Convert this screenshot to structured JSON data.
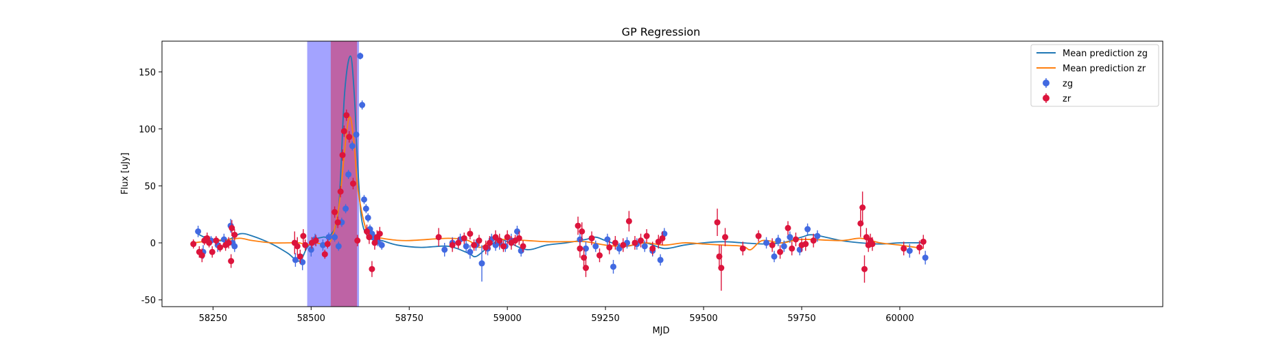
{
  "chart_data": {
    "type": "scatter",
    "title": "GP Regression",
    "xlabel": "MJD",
    "ylabel": "Flux [uJy]",
    "xlim": [
      58120,
      60670
    ],
    "ylim": [
      -56,
      177
    ],
    "xticks": [
      58250,
      58500,
      58750,
      59000,
      59250,
      59500,
      59750,
      60000
    ],
    "yticks": [
      -50,
      0,
      50,
      100,
      150
    ],
    "grid": false,
    "legend_position": "top-right",
    "colors": {
      "zg": "#4169e1",
      "zr": "#dc143c",
      "mean_zg": "#1f77b4",
      "mean_zr": "#ff7f0e",
      "band_zg": "#a3a3ff",
      "band_zr": "#c060a0"
    },
    "shaded_regions": [
      {
        "band": "zg",
        "x": [
          58490,
          58622
        ]
      },
      {
        "band": "zr",
        "x": [
          58550,
          58617
        ]
      }
    ],
    "series": [
      {
        "name": "Mean prediction zg",
        "kind": "line",
        "x": [
          58210,
          58250,
          58290,
          58320,
          58350,
          58400,
          58440,
          58470,
          58490,
          58510,
          58530,
          58550,
          58570,
          58585,
          58600,
          58610,
          58620,
          58630,
          58650,
          58680,
          58720,
          58780,
          58850,
          58900,
          58920,
          58950,
          58980,
          59000,
          59050,
          59100,
          59150,
          59200,
          59225,
          59250,
          59300,
          59350,
          59400,
          59450,
          59500,
          59550,
          59600,
          59650,
          59700,
          59750,
          59780,
          59850,
          59900,
          59950,
          60000,
          60060
        ],
        "y": [
          8,
          2,
          3,
          8,
          6,
          -1,
          -9,
          -16,
          -4,
          3,
          5,
          7,
          30,
          130,
          164,
          130,
          60,
          18,
          4,
          2,
          -2,
          -4,
          -3,
          -9,
          -12,
          -4,
          3,
          1,
          -6,
          -2,
          0,
          3,
          5,
          2,
          -3,
          0,
          -5,
          -2,
          0,
          1,
          0,
          -1,
          0,
          5,
          7,
          2,
          0,
          -1,
          0,
          0
        ]
      },
      {
        "name": "Mean prediction zr",
        "kind": "line",
        "x": [
          58200,
          58250,
          58290,
          58320,
          58350,
          58400,
          58440,
          58470,
          58490,
          58510,
          58530,
          58550,
          58570,
          58590,
          58600,
          58610,
          58620,
          58640,
          58660,
          58700,
          58750,
          58850,
          58900,
          58930,
          58960,
          59000,
          59050,
          59100,
          59150,
          59200,
          59250,
          59300,
          59350,
          59400,
          59450,
          59500,
          59550,
          59600,
          59620,
          59650,
          59700,
          59750,
          59850,
          59900,
          59950,
          60000,
          60060
        ],
        "y": [
          0,
          2,
          3,
          4,
          2,
          0,
          0,
          0,
          -2,
          0,
          -1,
          2,
          30,
          96,
          110,
          85,
          45,
          12,
          6,
          3,
          2,
          4,
          2,
          -4,
          2,
          3,
          2,
          1,
          1,
          1,
          -2,
          -3,
          0,
          -2,
          0,
          -1,
          -2,
          -3,
          -6,
          2,
          0,
          3,
          2,
          4,
          0,
          -2,
          -5
        ]
      },
      {
        "name": "zg",
        "kind": "errorbar",
        "x": [
          58212,
          58225,
          58245,
          58262,
          58278,
          58295,
          58300,
          58305,
          58460,
          58478,
          58500,
          58510,
          58530,
          58545,
          58560,
          58570,
          58578,
          58588,
          58595,
          58605,
          58615,
          58625,
          58630,
          58635,
          58640,
          58645,
          58650,
          58655,
          58660,
          58665,
          58670,
          58680,
          58840,
          58860,
          58880,
          58895,
          58905,
          58920,
          58935,
          58950,
          58960,
          58970,
          58980,
          58995,
          59010,
          59025,
          59035,
          59185,
          59200,
          59225,
          59255,
          59270,
          59285,
          59305,
          59330,
          59350,
          59370,
          59390,
          59400,
          59660,
          59680,
          59690,
          59705,
          59720,
          59745,
          59765,
          59790,
          60025,
          60065
        ],
        "y": [
          10,
          -8,
          2,
          -2,
          3,
          15,
          0,
          -3,
          -15,
          -17,
          -6,
          3,
          -2,
          5,
          5,
          -3,
          18,
          30,
          60,
          85,
          95,
          164,
          121,
          38,
          30,
          22,
          12,
          8,
          5,
          3,
          1,
          -2,
          -6,
          0,
          3,
          -3,
          -8,
          -2,
          -18,
          -5,
          3,
          -2,
          0,
          -3,
          2,
          10,
          -7,
          3,
          -5,
          -3,
          3,
          -21,
          -5,
          0,
          -1,
          -3,
          -7,
          -15,
          8,
          0,
          -12,
          2,
          -3,
          5,
          -6,
          12,
          6,
          -7,
          -13
        ],
        "err": [
          5,
          6,
          4,
          6,
          5,
          6,
          5,
          5,
          6,
          7,
          6,
          5,
          5,
          4,
          4,
          4,
          4,
          4,
          4,
          4,
          4,
          3,
          4,
          4,
          4,
          4,
          4,
          4,
          4,
          4,
          4,
          4,
          6,
          5,
          5,
          5,
          6,
          5,
          16,
          6,
          5,
          5,
          6,
          5,
          6,
          5,
          5,
          6,
          6,
          5,
          5,
          6,
          5,
          5,
          5,
          5,
          5,
          5,
          5,
          5,
          5,
          5,
          5,
          5,
          5,
          5,
          5,
          6,
          6
        ]
      },
      {
        "name": "zr",
        "kind": "errorbar",
        "x": [
          58200,
          58215,
          58222,
          58228,
          58235,
          58240,
          58248,
          58258,
          58268,
          58282,
          58290,
          58296,
          58298,
          58305,
          58458,
          58465,
          58472,
          58480,
          58485,
          58502,
          58512,
          58535,
          58542,
          58560,
          58568,
          58575,
          58580,
          58584,
          58590,
          58597,
          58607,
          58618,
          58642,
          58648,
          58655,
          58662,
          58668,
          58675,
          58825,
          58860,
          58875,
          58890,
          58905,
          58915,
          58928,
          58945,
          58955,
          58970,
          58980,
          58990,
          59000,
          59010,
          59020,
          59030,
          59040,
          59180,
          59185,
          59190,
          59195,
          59200,
          59215,
          59235,
          59260,
          59275,
          59295,
          59310,
          59325,
          59340,
          59355,
          59370,
          59385,
          59395,
          59535,
          59540,
          59545,
          59555,
          59600,
          59640,
          59675,
          59695,
          59715,
          59725,
          59735,
          59750,
          59760,
          59780,
          59900,
          59905,
          59910,
          59915,
          59920,
          59925,
          59930,
          60010,
          60050,
          60060
        ],
        "y": [
          -1,
          -8,
          -11,
          2,
          4,
          0,
          -8,
          2,
          -4,
          -2,
          0,
          -16,
          13,
          7,
          0,
          -3,
          -12,
          6,
          -2,
          0,
          2,
          -10,
          -1,
          27,
          18,
          45,
          77,
          98,
          112,
          93,
          52,
          2,
          10,
          5,
          -23,
          0,
          5,
          8,
          5,
          -2,
          0,
          4,
          8,
          -2,
          2,
          -4,
          0,
          5,
          2,
          -3,
          5,
          0,
          2,
          4,
          -3,
          15,
          -5,
          10,
          -13,
          -22,
          4,
          -11,
          -4,
          0,
          -2,
          19,
          0,
          2,
          6,
          -5,
          1,
          4,
          18,
          -12,
          -22,
          5,
          -5,
          6,
          -2,
          -8,
          13,
          -5,
          3,
          -2,
          -1,
          2,
          17,
          31,
          -23,
          5,
          -2,
          2,
          -1,
          -5,
          -4,
          1
        ],
        "err": [
          4,
          5,
          6,
          4,
          5,
          4,
          5,
          4,
          4,
          5,
          5,
          6,
          7,
          5,
          10,
          8,
          6,
          6,
          5,
          5,
          5,
          4,
          4,
          5,
          5,
          5,
          5,
          5,
          5,
          5,
          5,
          5,
          6,
          6,
          7,
          6,
          6,
          6,
          8,
          6,
          5,
          5,
          5,
          5,
          5,
          6,
          6,
          6,
          6,
          5,
          6,
          6,
          5,
          6,
          5,
          8,
          8,
          8,
          8,
          8,
          6,
          6,
          6,
          6,
          6,
          9,
          6,
          6,
          6,
          6,
          6,
          6,
          12,
          10,
          20,
          8,
          6,
          5,
          6,
          6,
          6,
          6,
          6,
          6,
          6,
          6,
          12,
          14,
          12,
          8,
          6,
          6,
          6,
          6,
          6,
          6
        ]
      }
    ]
  }
}
